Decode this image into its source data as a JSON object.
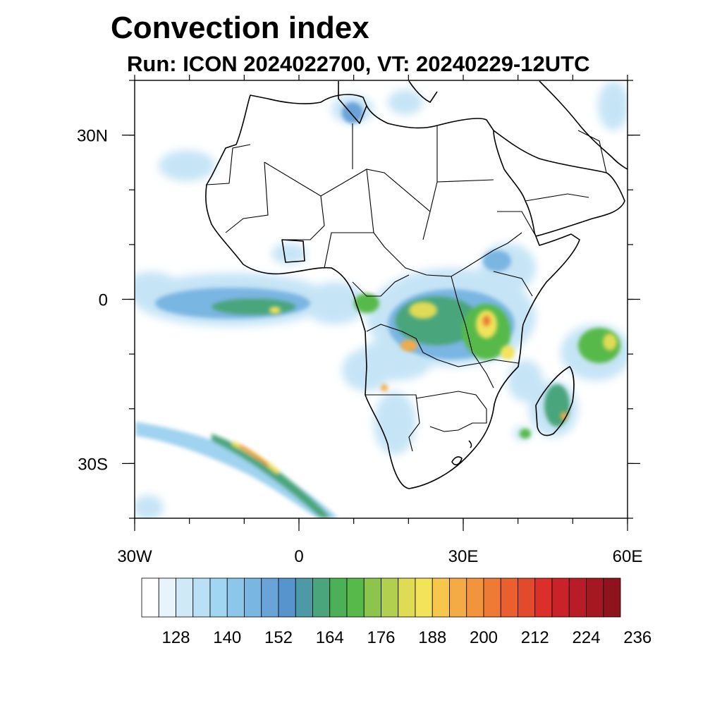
{
  "title": "Convection index",
  "subtitle": "Run: ICON 2024022700,  VT: 20240229-12UTC",
  "map": {
    "lon_range": [
      -30,
      60
    ],
    "lat_range": [
      -40,
      40
    ],
    "x_ticks": [
      {
        "value": -30,
        "label": "30W"
      },
      {
        "value": 0,
        "label": "0"
      },
      {
        "value": 30,
        "label": "30E"
      },
      {
        "value": 60,
        "label": "60E"
      }
    ],
    "y_ticks": [
      {
        "value": 30,
        "label": "30N"
      },
      {
        "value": 0,
        "label": "0"
      },
      {
        "value": -30,
        "label": "30S"
      }
    ]
  },
  "colorbar": {
    "colors": [
      "#ffffff",
      "#e8f4fb",
      "#cfe9f6",
      "#b9e0f4",
      "#a0d6f2",
      "#8cc7ea",
      "#7ab6e2",
      "#6aa3d8",
      "#5793cc",
      "#4d9aa6",
      "#4aa57c",
      "#4bb056",
      "#56b94a",
      "#8cc44c",
      "#b3cf4f",
      "#dfdb55",
      "#f2e35a",
      "#f7c64d",
      "#f4ab45",
      "#f2933d",
      "#ee7a35",
      "#e9602e",
      "#e34a2b",
      "#da3029",
      "#c92228",
      "#b81c26",
      "#a51822",
      "#8f131c"
    ],
    "labels": [
      "128",
      "140",
      "152",
      "164",
      "176",
      "188",
      "200",
      "212",
      "224",
      "236"
    ]
  }
}
